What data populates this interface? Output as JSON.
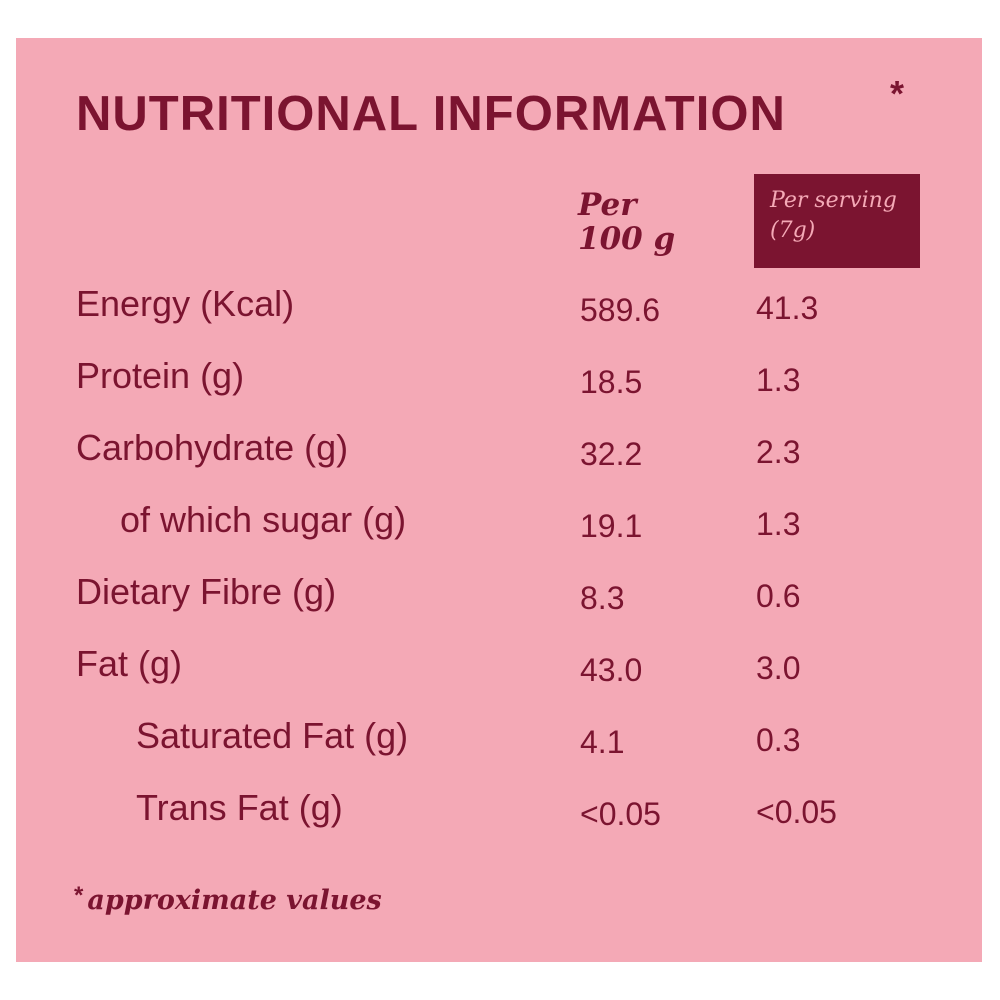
{
  "panel": {
    "title": "NUTRITIONAL INFORMATION",
    "title_asterisk": "*",
    "columns": {
      "per100_line1": "Per",
      "per100_line2": "100 g",
      "serving_line1": "Per serving",
      "serving_line2": "(7g)"
    },
    "rows": [
      {
        "label": "Energy (Kcal)",
        "per100": "589.6",
        "serving": "41.3",
        "indent": 0
      },
      {
        "label": "Protein (g)",
        "per100": "18.5",
        "serving": "1.3",
        "indent": 0
      },
      {
        "label": "Carbohydrate (g)",
        "per100": "32.2",
        "serving": "2.3",
        "indent": 0
      },
      {
        "label": "of which sugar (g)",
        "per100": "19.1",
        "serving": "1.3",
        "indent": 1
      },
      {
        "label": "Dietary Fibre (g)",
        "per100": "8.3",
        "serving": "0.6",
        "indent": 0
      },
      {
        "label": "Fat (g)",
        "per100": "43.0",
        "serving": "3.0",
        "indent": 0
      },
      {
        "label": "Saturated Fat (g)",
        "per100": "4.1",
        "serving": "0.3",
        "indent": 2
      },
      {
        "label": "Trans Fat (g)",
        "per100": "<0.05",
        "serving": "<0.05",
        "indent": 2
      }
    ],
    "footnote_asterisk": "*",
    "footnote": "approximate values"
  },
  "colors": {
    "background": "#f4a9b6",
    "text": "#7b1430",
    "header_box": "#7b1430"
  }
}
